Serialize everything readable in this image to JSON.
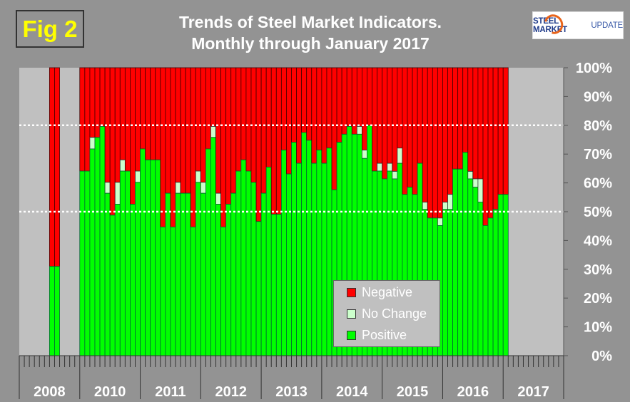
{
  "figure_label": "Fig 2",
  "logo": {
    "part1": "STEEL MARKET",
    "part2": "UPDATE"
  },
  "chart_data": {
    "type": "bar",
    "stacked": true,
    "title": "Trends of Steel Market Indicators.",
    "subtitle": "Monthly through  January 2017",
    "xlabel": "",
    "ylabel": "",
    "ylim": [
      0,
      100
    ],
    "ytick_labels": [
      "0%",
      "10%",
      "20%",
      "30%",
      "40%",
      "50%",
      "60%",
      "70%",
      "80%",
      "90%",
      "100%"
    ],
    "year_labels": [
      "2008",
      "2010",
      "2011",
      "2012",
      "2013",
      "2014",
      "2015",
      "2016",
      "2017"
    ],
    "reference_lines": [
      50,
      80
    ],
    "legend_position": "bottom-center",
    "colors": {
      "Negative": "#ff0000",
      "No Change": "#ccffcc",
      "Positive": "#00ff00",
      "plot_bg": "#c0c0c0"
    },
    "legend": [
      "Negative",
      "No Change",
      "Positive"
    ],
    "bars_2008": {
      "months": [
        7,
        8
      ],
      "positive": [
        31,
        31
      ],
      "no_change": [
        0,
        0
      ]
    },
    "bars_from_jan_2010": {
      "positive": [
        64.1,
        64.1,
        71.8,
        75.8,
        79.6,
        56.4,
        48.8,
        52.6,
        64.1,
        64.1,
        52.6,
        60.2,
        71.8,
        68,
        68,
        68,
        44.7,
        56.4,
        44.7,
        56.4,
        56.4,
        56.4,
        44.7,
        60.2,
        56.4,
        71.8,
        75.8,
        52.6,
        44.7,
        52.6,
        56.4,
        64.1,
        68,
        64.1,
        60.2,
        46.6,
        56.4,
        65.5,
        49.1,
        49.1,
        71.4,
        63.1,
        74.1,
        66.8,
        77.5,
        74.8,
        66.8,
        71.4,
        66.8,
        72.1,
        57.6,
        74.1,
        76.9,
        79.6,
        76.9,
        76.9,
        68.5,
        80,
        64.1,
        64.1,
        61.4,
        64.1,
        61.4,
        66.8,
        56,
        58.5,
        56,
        66.8,
        50.8,
        47.8,
        47.8,
        45.2,
        50.8,
        50.8,
        64.8,
        64.8,
        70.6,
        61.4,
        58.5,
        53.3,
        45.2,
        47.8,
        50.8,
        56,
        56
      ],
      "no_change": [
        0,
        0,
        4,
        0,
        0,
        3.8,
        0,
        7.6,
        3.9,
        0,
        0,
        3.9,
        0,
        0,
        0,
        0,
        0,
        0,
        0,
        3.8,
        0,
        0,
        0,
        3.9,
        3.8,
        0,
        3.8,
        3.8,
        0,
        0,
        0,
        0,
        0,
        0,
        0,
        0,
        0,
        0,
        0,
        0,
        0,
        0,
        0,
        0,
        0,
        0,
        0,
        0,
        0,
        0,
        0,
        0,
        0,
        0,
        0,
        2.7,
        2.9,
        0,
        0,
        2.7,
        0,
        2.7,
        2.6,
        5.3,
        0,
        0,
        0,
        0,
        2.5,
        0,
        0,
        2.6,
        2.5,
        5.2,
        0,
        0,
        0,
        2.6,
        2.9,
        8.1,
        0,
        0,
        0,
        0,
        0
      ]
    }
  }
}
